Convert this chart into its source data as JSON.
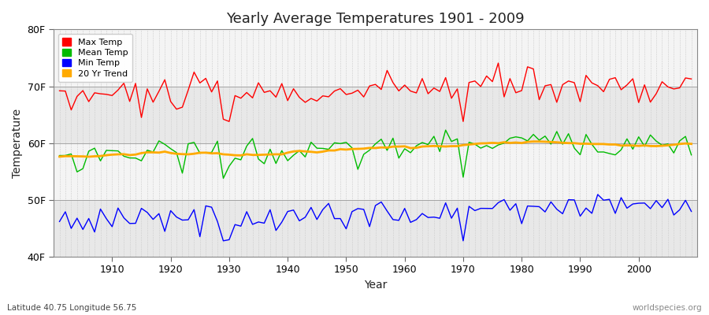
{
  "title": "Yearly Average Temperatures 1901 - 2009",
  "xlabel": "Year",
  "ylabel": "Temperature",
  "lat_lon_label": "Latitude 40.75 Longitude 56.75",
  "source_label": "worldspecies.org",
  "year_start": 1901,
  "year_end": 2009,
  "ylim": [
    40,
    80
  ],
  "yticks": [
    40,
    50,
    60,
    70,
    80
  ],
  "ytick_labels": [
    "40F",
    "50F",
    "60F",
    "70F",
    "80F"
  ],
  "legend_labels": [
    "Max Temp",
    "Mean Temp",
    "Min Temp",
    "20 Yr Trend"
  ],
  "line_colors": [
    "#ff0000",
    "#00bb00",
    "#0000ff",
    "#ffaa00"
  ],
  "fig_bg": "#ffffff",
  "band_colors": [
    "#e8e8e8",
    "#f4f4f4"
  ],
  "max_temp_base": 68.0,
  "mean_temp_base": 57.5,
  "min_temp_base": 46.0,
  "trend_slope": 0.025
}
